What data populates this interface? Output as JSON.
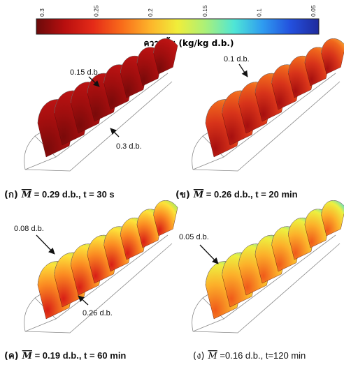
{
  "colorbar": {
    "title": "ความชื้น (kg/kg d.b.)",
    "ticks": [
      "0.3",
      "0.25",
      "0.2",
      "0.15",
      "0.1",
      "0.05"
    ],
    "stops": [
      "#6b0a0a",
      "#b80f0f",
      "#e42a18",
      "#f86a1a",
      "#fdb22a",
      "#f0ee3a",
      "#a9f07a",
      "#4fe6d6",
      "#2f9cf0",
      "#2350de",
      "#1f2a9c"
    ]
  },
  "panels": [
    {
      "id": "a",
      "prefix": "(ก)",
      "mbar": "M",
      "caption": " = 0.29 d.b., t = 30 s",
      "annotations": [
        "0.15 d.b.",
        "0.3 d.b."
      ],
      "colors": {
        "outer": "#b81212",
        "mid": "#a00e0e",
        "inner": "#7a0a0a",
        "rim": "#c21a16"
      }
    },
    {
      "id": "b",
      "prefix": "(ข)",
      "mbar": "M",
      "caption": " = 0.26 d.b., t = 20 min",
      "annotations": [
        "0.1 d.b."
      ],
      "colors": {
        "outer": "#f0661c",
        "mid": "#d8341a",
        "inner": "#a60f0f",
        "rim": "#f7a234"
      }
    },
    {
      "id": "c",
      "prefix": "(ค)",
      "mbar": "M",
      "caption": " = 0.19 d.b., t = 60 min",
      "annotations": [
        "0.08 d.b.",
        "0.26 d.b."
      ],
      "colors": {
        "outer": "#fde23a",
        "mid": "#fb8a22",
        "inner": "#d81e16",
        "rim": "#a9ea5c"
      }
    },
    {
      "id": "d",
      "prefix": "(ง)",
      "mbar": "M",
      "caption": " =0.16 d.b., t=120 min",
      "annotations": [
        "0.05 d.b."
      ],
      "colors": {
        "outer": "#edf040",
        "mid": "#fcb02a",
        "inner": "#f05a1a",
        "rim": "#5fe0c4"
      }
    }
  ]
}
